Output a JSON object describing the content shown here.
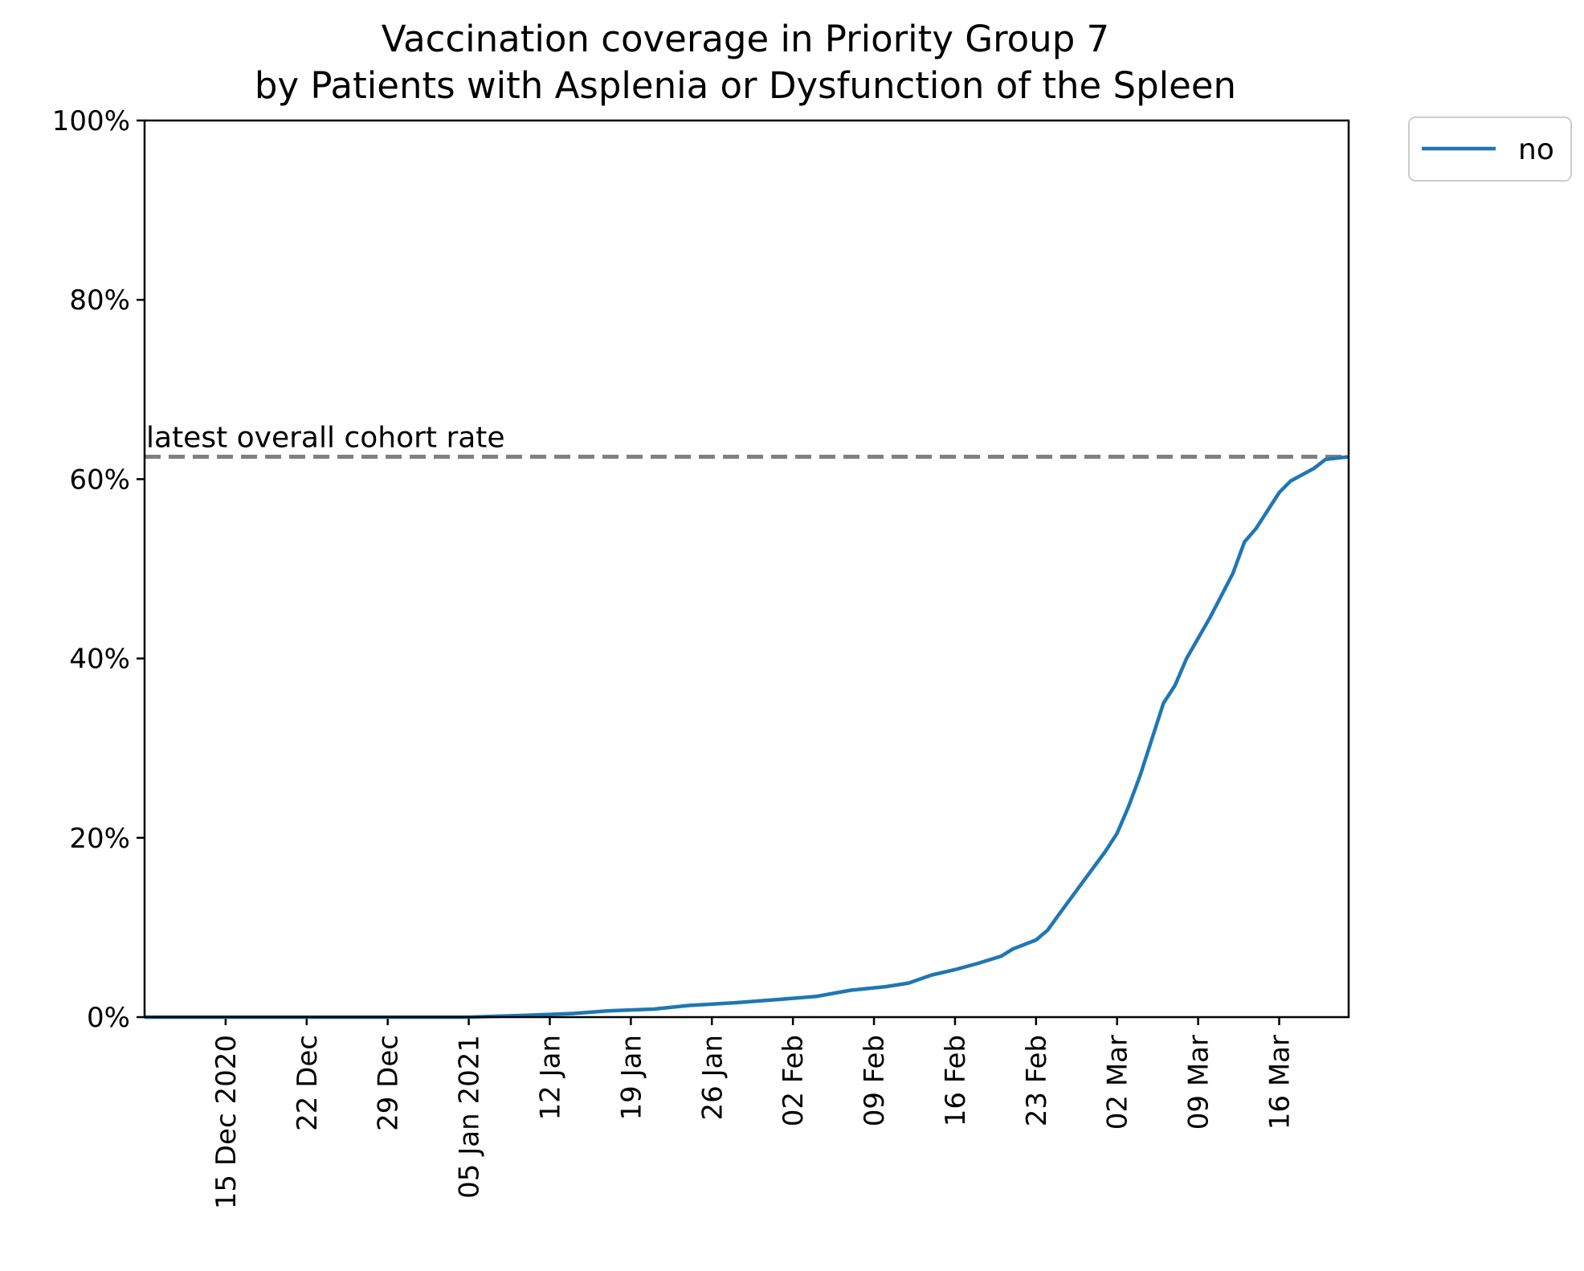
{
  "chart_data": {
    "type": "line",
    "title": "Vaccination coverage in Priority Group 7",
    "subtitle": "by Patients with Asplenia or Dysfunction of the Spleen",
    "xlabel": "",
    "ylabel": "",
    "x_type": "date",
    "xlim": [
      "2020-12-08",
      "2021-03-22"
    ],
    "ylim": [
      0,
      100
    ],
    "y_unit": "%",
    "y_ticks": [
      0,
      20,
      40,
      60,
      80,
      100
    ],
    "y_tick_labels": [
      "0%",
      "20%",
      "40%",
      "60%",
      "80%",
      "100%"
    ],
    "x_ticks": [
      "2020-12-15",
      "2020-12-22",
      "2020-12-29",
      "2021-01-05",
      "2021-01-12",
      "2021-01-19",
      "2021-01-26",
      "2021-02-02",
      "2021-02-09",
      "2021-02-16",
      "2021-02-23",
      "2021-03-02",
      "2021-03-09",
      "2021-03-16"
    ],
    "x_tick_labels": [
      "15 Dec 2020",
      "22 Dec",
      "29 Dec",
      "05 Jan 2021",
      "12 Jan",
      "19 Jan",
      "26 Jan",
      "02 Feb",
      "09 Feb",
      "16 Feb",
      "23 Feb",
      "02 Mar",
      "09 Mar",
      "16 Mar"
    ],
    "grid": false,
    "legend_position": "outside top-right",
    "reference_line": {
      "y": 62.5,
      "label": "latest overall cohort rate",
      "style": "dashed",
      "color": "#808080"
    },
    "series": [
      {
        "name": "no",
        "color": "#1f77b4",
        "points": [
          [
            "2020-12-08",
            0
          ],
          [
            "2021-01-05",
            0
          ],
          [
            "2021-01-10",
            0.2
          ],
          [
            "2021-01-14",
            0.4
          ],
          [
            "2021-01-17",
            0.7
          ],
          [
            "2021-01-21",
            0.9
          ],
          [
            "2021-01-24",
            1.3
          ],
          [
            "2021-01-28",
            1.6
          ],
          [
            "2021-02-01",
            2.0
          ],
          [
            "2021-02-04",
            2.3
          ],
          [
            "2021-02-07",
            3.0
          ],
          [
            "2021-02-10",
            3.4
          ],
          [
            "2021-02-12",
            3.8
          ],
          [
            "2021-02-14",
            4.7
          ],
          [
            "2021-02-16",
            5.3
          ],
          [
            "2021-02-18",
            6.0
          ],
          [
            "2021-02-20",
            6.8
          ],
          [
            "2021-02-21",
            7.6
          ],
          [
            "2021-02-23",
            8.6
          ],
          [
            "2021-02-24",
            9.7
          ],
          [
            "2021-02-25",
            11.5
          ],
          [
            "2021-02-27",
            15.0
          ],
          [
            "2021-03-01",
            18.5
          ],
          [
            "2021-03-02",
            20.5
          ],
          [
            "2021-03-03",
            23.5
          ],
          [
            "2021-03-04",
            27.0
          ],
          [
            "2021-03-06",
            35.0
          ],
          [
            "2021-03-07",
            37.0
          ],
          [
            "2021-03-08",
            40.0
          ],
          [
            "2021-03-10",
            44.5
          ],
          [
            "2021-03-11",
            47.0
          ],
          [
            "2021-03-12",
            49.5
          ],
          [
            "2021-03-13",
            53.0
          ],
          [
            "2021-03-14",
            54.5
          ],
          [
            "2021-03-15",
            56.5
          ],
          [
            "2021-03-16",
            58.5
          ],
          [
            "2021-03-17",
            59.8
          ],
          [
            "2021-03-19",
            61.2
          ],
          [
            "2021-03-20",
            62.2
          ],
          [
            "2021-03-22",
            62.5
          ]
        ]
      }
    ]
  }
}
